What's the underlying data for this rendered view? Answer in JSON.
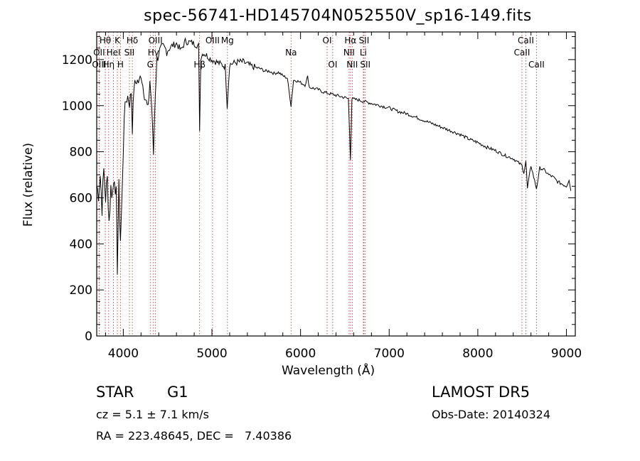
{
  "chart_data": {
    "type": "line",
    "title": "spec-56741-HD145704N052550V_sp16-149.fits",
    "xlabel": "Wavelength (Å)",
    "ylabel": "Flux (relative)",
    "xlim": [
      3700,
      9100
    ],
    "ylim": [
      0,
      1320
    ],
    "xticks": [
      4000,
      5000,
      6000,
      7000,
      8000,
      9000
    ],
    "yticks": [
      0,
      200,
      400,
      600,
      800,
      1000,
      1200
    ],
    "grid": false,
    "line_color": "#000000",
    "marker_color": "#b03030",
    "series": [
      {
        "x": [
          3700,
          3720,
          3740,
          3760,
          3780,
          3800,
          3820,
          3840,
          3860,
          3880,
          3900,
          3920,
          3933,
          3950,
          3968,
          3990,
          4010,
          4030,
          4050,
          4070,
          4090,
          4102,
          4120,
          4150,
          4180,
          4200,
          4220,
          4250,
          4280,
          4300,
          4320,
          4340,
          4360,
          4380,
          4400,
          4450,
          4500,
          4550,
          4600,
          4650,
          4700,
          4750,
          4800,
          4850,
          4861,
          4875,
          4900,
          4950,
          5000,
          5050,
          5100,
          5150,
          5172,
          5200,
          5250,
          5300,
          5350,
          5400,
          5450,
          5500,
          5550,
          5600,
          5650,
          5700,
          5750,
          5800,
          5850,
          5893,
          5920,
          5950,
          6000,
          6050,
          6080,
          6100,
          6150,
          6200,
          6250,
          6300,
          6350,
          6400,
          6450,
          6500,
          6540,
          6563,
          6580,
          6600,
          6650,
          6700,
          6750,
          6800,
          6900,
          7000,
          7100,
          7200,
          7300,
          7400,
          7500,
          7600,
          7700,
          7800,
          7900,
          8000,
          8100,
          8200,
          8300,
          8400,
          8498,
          8520,
          8542,
          8560,
          8600,
          8662,
          8700,
          8750,
          8800,
          8850,
          8900,
          8950,
          9000,
          9030,
          9050
        ],
        "y": [
          650,
          620,
          700,
          560,
          720,
          600,
          680,
          500,
          640,
          620,
          700,
          610,
          300,
          640,
          420,
          650,
          960,
          1020,
          1040,
          1010,
          1060,
          900,
          1080,
          1110,
          1100,
          1140,
          1090,
          1030,
          980,
          1110,
          1000,
          790,
          1050,
          1200,
          1230,
          1250,
          1240,
          1260,
          1270,
          1240,
          1280,
          1275,
          1270,
          1260,
          900,
          1210,
          1230,
          1215,
          1200,
          1190,
          1180,
          1170,
          1000,
          1180,
          1185,
          1190,
          1190,
          1180,
          1170,
          1165,
          1160,
          1150,
          1150,
          1140,
          1145,
          1130,
          1120,
          1000,
          1110,
          1110,
          1100,
          1090,
          1125,
          1080,
          1075,
          1070,
          1060,
          1055,
          1050,
          1045,
          1040,
          1035,
          1030,
          770,
          1030,
          1028,
          1025,
          1020,
          1015,
          1010,
          1000,
          990,
          975,
          965,
          950,
          935,
          920,
          905,
          890,
          875,
          855,
          840,
          820,
          805,
          785,
          770,
          740,
          710,
          760,
          640,
          740,
          640,
          730,
          720,
          700,
          690,
          670,
          660,
          650,
          680,
          630
        ]
      }
    ],
    "lines": [
      {
        "label": "Hθ",
        "wl": 3797,
        "row": 0
      },
      {
        "label": "OII",
        "wl": 3727,
        "row": 1
      },
      {
        "label": "OIII",
        "wl": 3727,
        "row": 2
      },
      {
        "label": "K",
        "wl": 3933,
        "row": 0
      },
      {
        "label": "HeI",
        "wl": 3889,
        "row": 1
      },
      {
        "label": "Hη",
        "wl": 3835,
        "row": 2
      },
      {
        "label": "Hδ",
        "wl": 4102,
        "row": 0
      },
      {
        "label": "SII",
        "wl": 4069,
        "row": 1
      },
      {
        "label": "H",
        "wl": 3968,
        "row": 2
      },
      {
        "label": "OIII",
        "wl": 4363,
        "row": 0
      },
      {
        "label": "Hγ",
        "wl": 4340,
        "row": 1
      },
      {
        "label": "G",
        "wl": 4304,
        "row": 2
      },
      {
        "label": "OIII",
        "wl": 5007,
        "row": 0
      },
      {
        "label": "Hβ",
        "wl": 4861,
        "row": 2
      },
      {
        "label": "Mg",
        "wl": 5175,
        "row": 0
      },
      {
        "label": "Na",
        "wl": 5893,
        "row": 1
      },
      {
        "label": "OI",
        "wl": 6300,
        "row": 0
      },
      {
        "label": "OI",
        "wl": 6363,
        "row": 2
      },
      {
        "label": "Hα",
        "wl": 6563,
        "row": 0
      },
      {
        "label": "NII",
        "wl": 6548,
        "row": 1
      },
      {
        "label": "NII",
        "wl": 6583,
        "row": 2
      },
      {
        "label": "SII",
        "wl": 6716,
        "row": 0
      },
      {
        "label": "Li",
        "wl": 6708,
        "row": 1
      },
      {
        "label": "SII",
        "wl": 6731,
        "row": 2
      },
      {
        "label": "CaII",
        "wl": 8542,
        "row": 0
      },
      {
        "label": "CaII",
        "wl": 8498,
        "row": 1
      },
      {
        "label": "CaII",
        "wl": 8662,
        "row": 2
      }
    ]
  },
  "footer": {
    "class_label": "STAR",
    "subclass": "G1",
    "cz_text": "cz = 5.1 ± 7.1 km/s",
    "radec_text": "RA = 223.48645, DEC =   7.40386",
    "survey": "LAMOST DR5",
    "obs_date": "Obs-Date: 20140324"
  }
}
